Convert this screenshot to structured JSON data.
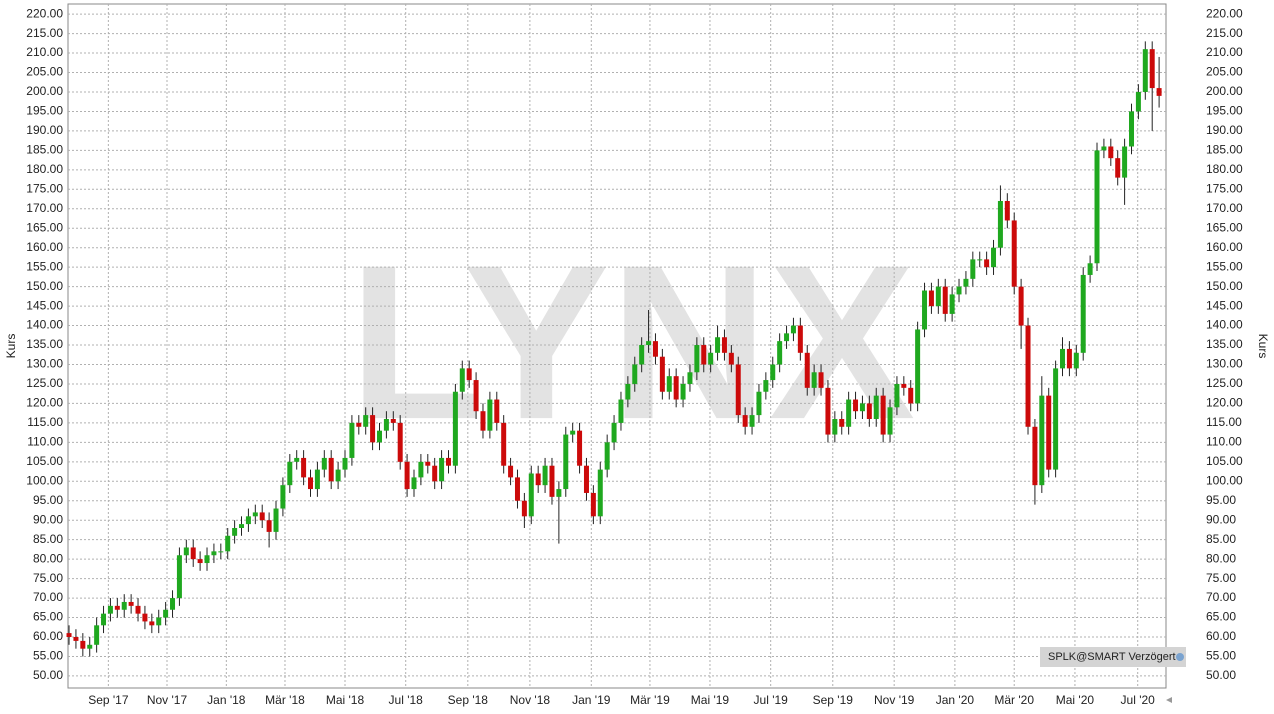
{
  "chart_data": {
    "type": "candlestick",
    "y_label": "Kurs",
    "watermark": "LYNX",
    "annotation": "SPLK@SMART Verzögert",
    "up_color": "#1fa81f",
    "down_color": "#cc0a0a",
    "grid": true,
    "open": [
      61,
      60,
      59,
      57,
      58,
      63,
      66,
      68,
      67,
      69,
      68,
      66,
      64,
      63,
      65,
      67,
      70,
      81,
      83,
      80,
      79,
      81,
      82,
      82,
      86,
      88,
      89,
      91,
      92,
      90,
      87,
      93,
      99,
      105,
      106,
      101,
      98,
      103,
      106,
      100,
      103,
      106,
      115,
      114,
      117,
      110,
      113,
      116,
      115,
      105,
      98,
      101,
      105,
      104,
      100,
      106,
      104,
      123,
      129,
      126,
      118,
      113,
      121,
      115,
      104,
      101,
      95,
      91,
      102,
      99,
      104,
      96,
      98,
      112,
      113,
      104,
      97,
      91,
      103,
      110,
      115,
      121,
      125,
      130,
      135,
      136,
      132,
      123,
      127,
      121,
      125,
      128,
      135,
      130,
      133,
      137,
      133,
      130,
      117,
      114,
      117,
      123,
      126,
      130,
      136,
      138,
      140,
      133,
      124,
      128,
      124,
      112,
      116,
      114,
      121,
      118,
      120,
      116,
      122,
      112,
      119,
      125,
      124,
      120,
      139,
      149,
      145,
      150,
      143,
      148,
      150,
      152,
      157,
      157,
      155,
      160,
      172,
      167,
      150,
      140,
      114,
      99,
      122,
      103,
      129,
      134,
      129,
      133,
      153,
      156,
      185,
      186,
      183,
      178,
      186,
      195,
      200,
      211,
      201
    ],
    "high": [
      63,
      62,
      61,
      60,
      65,
      68,
      70,
      70,
      71,
      71,
      70,
      68,
      66,
      67,
      69,
      72,
      83,
      85,
      85,
      82,
      83,
      84,
      84,
      88,
      90,
      91,
      93,
      94,
      94,
      92,
      95,
      101,
      107,
      108,
      108,
      103,
      105,
      108,
      108,
      105,
      108,
      117,
      117,
      119,
      119,
      115,
      118,
      118,
      117,
      107,
      103,
      107,
      107,
      106,
      108,
      108,
      125,
      131,
      131,
      128,
      120,
      123,
      123,
      117,
      106,
      103,
      97,
      104,
      104,
      106,
      106,
      100,
      114,
      115,
      115,
      106,
      99,
      105,
      112,
      117,
      123,
      127,
      132,
      137,
      144,
      138,
      134,
      129,
      129,
      127,
      130,
      137,
      137,
      135,
      140,
      139,
      135,
      132,
      119,
      119,
      125,
      128,
      132,
      138,
      140,
      142,
      142,
      135,
      130,
      130,
      126,
      118,
      118,
      123,
      123,
      122,
      122,
      124,
      124,
      121,
      127,
      127,
      126,
      141,
      151,
      151,
      152,
      152,
      150,
      152,
      154,
      159,
      159,
      159,
      162,
      176,
      174,
      169,
      152,
      142,
      116,
      127,
      124,
      131,
      137,
      136,
      135,
      155,
      158,
      187,
      188,
      188,
      185,
      188,
      197,
      202,
      213,
      213,
      209
    ],
    "low": [
      58,
      57,
      55,
      55,
      56,
      61,
      64,
      65,
      65,
      66,
      64,
      62,
      61,
      61,
      63,
      65,
      68,
      79,
      78,
      77,
      77,
      79,
      80,
      80,
      84,
      86,
      87,
      89,
      88,
      83,
      85,
      91,
      97,
      103,
      99,
      96,
      96,
      101,
      98,
      98,
      101,
      104,
      112,
      112,
      108,
      108,
      111,
      113,
      103,
      96,
      96,
      99,
      102,
      98,
      98,
      102,
      102,
      121,
      124,
      116,
      111,
      111,
      113,
      102,
      99,
      93,
      88,
      89,
      97,
      97,
      94,
      84,
      96,
      110,
      102,
      95,
      89,
      89,
      101,
      108,
      113,
      119,
      123,
      128,
      133,
      130,
      121,
      121,
      119,
      119,
      123,
      126,
      128,
      128,
      131,
      131,
      128,
      115,
      112,
      112,
      115,
      121,
      124,
      128,
      134,
      136,
      131,
      122,
      122,
      122,
      110,
      110,
      112,
      112,
      116,
      116,
      114,
      114,
      110,
      110,
      117,
      122,
      118,
      118,
      137,
      143,
      143,
      141,
      141,
      146,
      148,
      150,
      155,
      153,
      153,
      158,
      165,
      148,
      134,
      112,
      94,
      97,
      101,
      101,
      127,
      127,
      127,
      131,
      151,
      154,
      183,
      181,
      176,
      171,
      184,
      193,
      198,
      190,
      196
    ],
    "close": [
      60,
      59,
      57,
      58,
      63,
      66,
      68,
      67,
      69,
      68,
      66,
      64,
      63,
      65,
      67,
      70,
      81,
      83,
      80,
      79,
      81,
      82,
      82,
      86,
      88,
      89,
      91,
      92,
      90,
      87,
      93,
      99,
      105,
      106,
      101,
      98,
      103,
      106,
      100,
      103,
      106,
      115,
      114,
      117,
      110,
      113,
      116,
      115,
      105,
      98,
      101,
      105,
      104,
      100,
      106,
      104,
      123,
      129,
      126,
      118,
      113,
      121,
      115,
      104,
      101,
      95,
      91,
      102,
      99,
      104,
      96,
      98,
      112,
      113,
      104,
      97,
      91,
      103,
      110,
      115,
      121,
      125,
      130,
      135,
      136,
      132,
      123,
      127,
      121,
      125,
      128,
      135,
      130,
      133,
      137,
      133,
      130,
      117,
      114,
      117,
      123,
      126,
      130,
      136,
      138,
      140,
      133,
      124,
      128,
      124,
      112,
      116,
      114,
      121,
      118,
      120,
      116,
      122,
      112,
      119,
      125,
      124,
      120,
      139,
      149,
      145,
      150,
      143,
      148,
      150,
      152,
      157,
      157,
      155,
      160,
      172,
      167,
      150,
      140,
      114,
      99,
      122,
      103,
      129,
      134,
      129,
      133,
      153,
      156,
      185,
      186,
      183,
      178,
      186,
      195,
      200,
      211,
      201,
      199
    ],
    "xlim": [
      -0.15,
      159
    ],
    "xticks": [
      {
        "value": 5.7,
        "label": "Sep '17"
      },
      {
        "value": 14.2,
        "label": "Nov '17"
      },
      {
        "value": 22.8,
        "label": "Jan '18"
      },
      {
        "value": 31.3,
        "label": "Mär '18"
      },
      {
        "value": 40,
        "label": "Mai '18"
      },
      {
        "value": 48.8,
        "label": "Jul '18"
      },
      {
        "value": 57.8,
        "label": "Sep '18"
      },
      {
        "value": 66.8,
        "label": "Nov '18"
      },
      {
        "value": 75.7,
        "label": "Jan '19"
      },
      {
        "value": 84.2,
        "label": "Mär '19"
      },
      {
        "value": 92.9,
        "label": "Mai '19"
      },
      {
        "value": 101.7,
        "label": "Jul '19"
      },
      {
        "value": 110.7,
        "label": "Sep '19"
      },
      {
        "value": 119.6,
        "label": "Nov '19"
      },
      {
        "value": 128.4,
        "label": "Jan '20"
      },
      {
        "value": 137,
        "label": "Mär '20"
      },
      {
        "value": 145.8,
        "label": "Mai '20"
      },
      {
        "value": 154.9,
        "label": "Jul '20"
      }
    ],
    "ylim": [
      46.9,
      222.6
    ],
    "yticks": [
      {
        "value": 50,
        "label": "50.00"
      },
      {
        "value": 55,
        "label": "55.00"
      },
      {
        "value": 60,
        "label": "60.00"
      },
      {
        "value": 65,
        "label": "65.00"
      },
      {
        "value": 70,
        "label": "70.00"
      },
      {
        "value": 75,
        "label": "75.00"
      },
      {
        "value": 80,
        "label": "80.00"
      },
      {
        "value": 85,
        "label": "85.00"
      },
      {
        "value": 90,
        "label": "90.00"
      },
      {
        "value": 95,
        "label": "95.00"
      },
      {
        "value": 100,
        "label": "100.00"
      },
      {
        "value": 105,
        "label": "105.00"
      },
      {
        "value": 110,
        "label": "110.00"
      },
      {
        "value": 115,
        "label": "115.00"
      },
      {
        "value": 120,
        "label": "120.00"
      },
      {
        "value": 125,
        "label": "125.00"
      },
      {
        "value": 130,
        "label": "130.00"
      },
      {
        "value": 135,
        "label": "135.00"
      },
      {
        "value": 140,
        "label": "140.00"
      },
      {
        "value": 145,
        "label": "145.00"
      },
      {
        "value": 150,
        "label": "150.00"
      },
      {
        "value": 155,
        "label": "155.00"
      },
      {
        "value": 160,
        "label": "160.00"
      },
      {
        "value": 165,
        "label": "165.00"
      },
      {
        "value": 170,
        "label": "170.00"
      },
      {
        "value": 175,
        "label": "175.00"
      },
      {
        "value": 180,
        "label": "180.00"
      },
      {
        "value": 185,
        "label": "185.00"
      },
      {
        "value": 190,
        "label": "190.00"
      },
      {
        "value": 195,
        "label": "195.00"
      },
      {
        "value": 200,
        "label": "200.00"
      },
      {
        "value": 205,
        "label": "205.00"
      },
      {
        "value": 210,
        "label": "210.00"
      },
      {
        "value": 215,
        "label": "215.00"
      },
      {
        "value": 220,
        "label": "220.00"
      }
    ]
  }
}
